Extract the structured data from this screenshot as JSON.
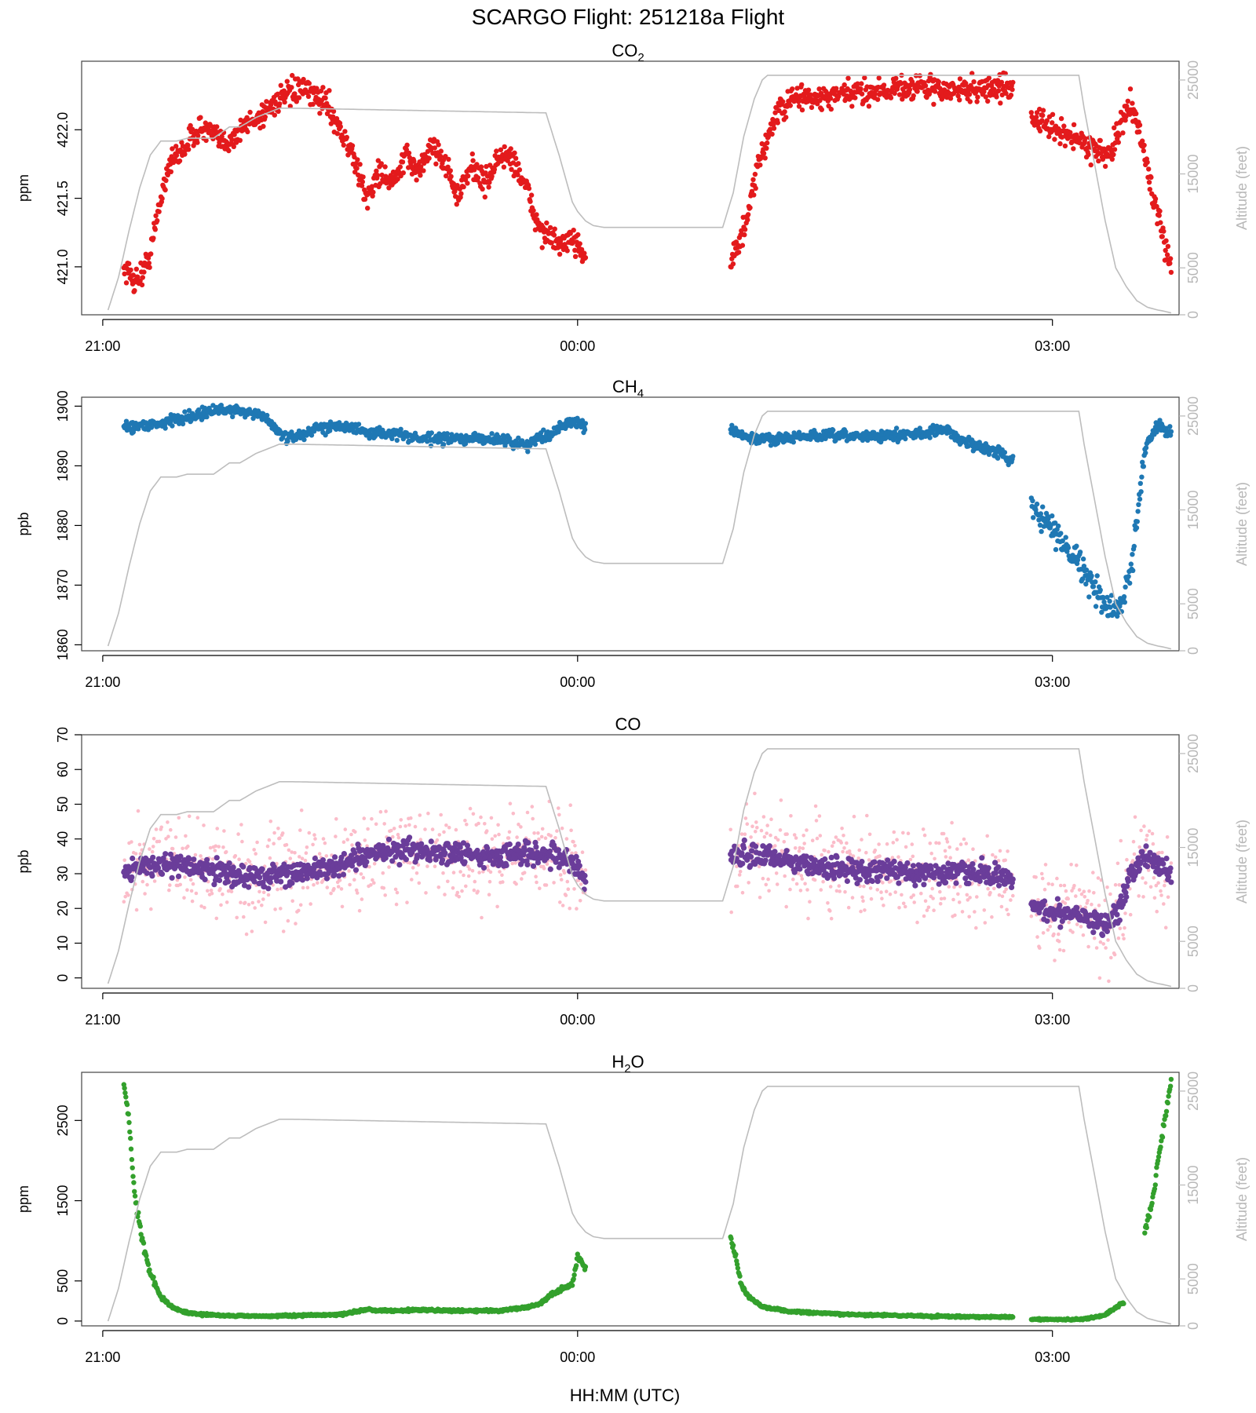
{
  "figure": {
    "title": "SCARGO Flight: 251218a  Flight",
    "xlabel": "HH:MM (UTC)"
  },
  "colors": {
    "co2": "#e31a1c",
    "ch4": "#1f78b4",
    "co_raw": "#fbbcc9",
    "co_avg": "#6a3d9a",
    "h2o": "#33a02c",
    "altitude": "#bdbdbd"
  },
  "chart_data": [
    {
      "type": "scatter",
      "title_main": "CO",
      "title_sub": "2",
      "ylabel": "ppm",
      "y2label": "Altitude (feet)",
      "xlim": [
        "20:52",
        "03:48"
      ],
      "ylim": [
        420.65,
        422.5
      ],
      "yticks": [
        421.0,
        421.5,
        422.0
      ],
      "y2lim": [
        0,
        27000
      ],
      "y2ticks": [
        0,
        5000,
        15000,
        25000
      ],
      "xticks": [
        "21:00",
        "00:00",
        "03:00"
      ],
      "segments": [
        {
          "x": [
            "21:08",
            "21:12",
            "21:15",
            "21:18",
            "21:22",
            "21:25",
            "21:28",
            "21:32",
            "21:36",
            "21:40",
            "21:45",
            "21:50",
            "21:55",
            "22:00",
            "22:05",
            "22:10",
            "22:15",
            "22:20",
            "22:25",
            "22:30",
            "22:35",
            "22:40",
            "22:45",
            "22:50",
            "22:55",
            "23:00",
            "23:05",
            "23:10",
            "23:15",
            "23:20",
            "23:25",
            "23:30",
            "23:35",
            "23:40",
            "23:45",
            "23:50",
            "23:55",
            "00:00",
            "00:03"
          ],
          "y": [
            421.0,
            420.9,
            420.95,
            421.1,
            421.5,
            421.75,
            421.8,
            421.9,
            422.0,
            422.0,
            421.9,
            421.95,
            422.05,
            422.1,
            422.2,
            422.25,
            422.3,
            422.25,
            422.2,
            422.0,
            421.8,
            421.5,
            421.7,
            421.6,
            421.8,
            421.7,
            421.9,
            421.75,
            421.5,
            421.75,
            421.6,
            421.8,
            421.8,
            421.6,
            421.3,
            421.2,
            421.15,
            421.2,
            421.05
          ]
        },
        {
          "x": [
            "00:58",
            "01:02",
            "01:05",
            "01:08",
            "01:12",
            "01:15",
            "01:20",
            "01:25",
            "01:30",
            "01:40",
            "01:50",
            "02:00",
            "02:10",
            "02:20",
            "02:30",
            "02:40",
            "02:45"
          ],
          "y": [
            421.05,
            421.2,
            421.4,
            421.7,
            421.95,
            422.1,
            422.2,
            422.25,
            422.22,
            422.25,
            422.28,
            422.3,
            422.32,
            422.28,
            422.3,
            422.3,
            422.32
          ]
        },
        {
          "x": [
            "02:52",
            "03:00",
            "03:08",
            "03:12",
            "03:18",
            "03:22",
            "03:26",
            "03:30",
            "03:34",
            "03:40",
            "03:45"
          ],
          "y": [
            422.1,
            422.0,
            421.95,
            421.9,
            421.85,
            421.8,
            422.05,
            422.2,
            421.9,
            421.35,
            421.0
          ]
        }
      ]
    },
    {
      "type": "scatter",
      "title_main": "CH",
      "title_sub": "4",
      "ylabel": "ppb",
      "y2label": "Altitude (feet)",
      "xlim": [
        "20:52",
        "03:48"
      ],
      "ylim": [
        1859,
        1901.5
      ],
      "yticks": [
        1860,
        1870,
        1880,
        1890,
        1900
      ],
      "y2lim": [
        0,
        27000
      ],
      "y2ticks": [
        0,
        5000,
        15000,
        25000
      ],
      "xticks": [
        "21:00",
        "00:00",
        "03:00"
      ],
      "segments": [
        {
          "x": [
            "21:08",
            "21:20",
            "21:30",
            "21:40",
            "21:50",
            "22:00",
            "22:10",
            "22:20",
            "22:30",
            "22:40",
            "22:50",
            "23:00",
            "23:10",
            "23:20",
            "23:30",
            "23:40",
            "23:50",
            "23:55",
            "00:00",
            "00:03"
          ],
          "y": [
            1896.5,
            1897,
            1898,
            1899,
            1899.5,
            1898.5,
            1894.5,
            1896,
            1897,
            1895.5,
            1895.5,
            1894.5,
            1894.5,
            1894.5,
            1894.5,
            1893.5,
            1895.5,
            1897,
            1897.5,
            1896
          ]
        },
        {
          "x": [
            "00:58",
            "01:05",
            "01:15",
            "01:30",
            "01:45",
            "02:00",
            "02:10",
            "02:20",
            "02:25",
            "02:30",
            "02:35",
            "02:40",
            "02:45"
          ],
          "y": [
            1896,
            1894.5,
            1894.5,
            1895,
            1895,
            1895,
            1895.5,
            1896,
            1894.5,
            1893.5,
            1893,
            1892,
            1891
          ]
        },
        {
          "x": [
            "02:52",
            "03:00",
            "03:05",
            "03:10",
            "03:15",
            "03:20",
            "03:25",
            "03:30",
            "03:35",
            "03:40",
            "03:45"
          ],
          "y": [
            1884,
            1879,
            1877,
            1874,
            1870,
            1866.5,
            1865.5,
            1873,
            1893,
            1897,
            1895.5
          ]
        }
      ]
    },
    {
      "type": "scatter",
      "title_main": "CO",
      "title_sub": "",
      "ylabel": "ppb",
      "y2label": "Altitude (feet)",
      "xlim": [
        "20:52",
        "03:48"
      ],
      "ylim": [
        -3,
        70
      ],
      "yticks": [
        0,
        10,
        20,
        30,
        40,
        50,
        60,
        70
      ],
      "y2lim": [
        0,
        27000
      ],
      "y2ticks": [
        0,
        5000,
        15000,
        25000
      ],
      "xticks": [
        "21:00",
        "00:00",
        "03:00"
      ],
      "series": [
        {
          "name": "",
          "segments": [
            {
              "x": [
                "21:08",
                "21:20",
                "21:30",
                "21:40",
                "21:50",
                "22:00",
                "22:10",
                "22:20",
                "22:30",
                "22:40",
                "22:50",
                "23:00",
                "23:10",
                "23:20",
                "23:30",
                "23:40",
                "23:50",
                "23:55",
                "00:00",
                "00:03"
              ],
              "y": [
                31,
                33,
                32,
                31,
                30,
                29,
                30,
                31,
                32,
                35,
                37,
                37,
                36,
                35,
                35,
                36,
                36,
                34,
                32,
                28
              ]
            },
            {
              "x": [
                "00:58",
                "01:10",
                "01:20",
                "01:30",
                "01:45",
                "02:00",
                "02:15",
                "02:30",
                "02:40",
                "02:45"
              ],
              "y": [
                35,
                35,
                34,
                32,
                31,
                31,
                30,
                30,
                29,
                28
              ]
            },
            {
              "x": [
                "02:52",
                "03:00",
                "03:10",
                "03:15",
                "03:20",
                "03:25",
                "03:30",
                "03:35",
                "03:40",
                "03:45"
              ],
              "y": [
                21,
                19,
                19,
                17,
                15,
                20,
                30,
                35,
                33,
                30
              ]
            }
          ]
        }
      ]
    },
    {
      "type": "scatter",
      "title_main": "H",
      "title_sub": "2",
      "title_after": "O",
      "ylabel": "ppm",
      "y2label": "Altitude (feet)",
      "xlim": [
        "20:52",
        "03:48"
      ],
      "ylim": [
        -60,
        3100
      ],
      "yticks": [
        0,
        500,
        1500,
        2500
      ],
      "y2lim": [
        0,
        27000
      ],
      "y2ticks": [
        0,
        5000,
        15000,
        25000
      ],
      "xticks": [
        "21:00",
        "00:00",
        "03:00"
      ],
      "segments": [
        {
          "x": [
            "21:08",
            "21:10",
            "21:12",
            "21:15",
            "21:18",
            "21:22",
            "21:26",
            "21:30",
            "21:35",
            "21:45",
            "22:00",
            "22:15",
            "22:30",
            "22:40",
            "22:50",
            "23:00",
            "23:10",
            "23:20",
            "23:30",
            "23:40",
            "23:45",
            "23:50",
            "23:55",
            "23:58",
            "00:00",
            "00:03"
          ],
          "y": [
            2950,
            2500,
            1600,
            1000,
            600,
            300,
            180,
            120,
            90,
            70,
            60,
            70,
            80,
            140,
            130,
            140,
            130,
            130,
            130,
            170,
            200,
            330,
            420,
            450,
            800,
            650
          ]
        },
        {
          "x": [
            "00:58",
            "01:00",
            "01:02",
            "01:05",
            "01:10",
            "01:20",
            "01:30",
            "01:45",
            "02:00",
            "02:15",
            "02:30",
            "02:45"
          ],
          "y": [
            1050,
            800,
            450,
            300,
            180,
            120,
            100,
            80,
            70,
            60,
            55,
            50
          ]
        },
        {
          "x": [
            "02:52",
            "03:00",
            "03:10",
            "03:15",
            "03:20",
            "03:24",
            "03:27"
          ],
          "y": [
            20,
            20,
            20,
            40,
            80,
            170,
            230
          ]
        },
        {
          "x": [
            "03:35",
            "03:38",
            "03:40",
            "03:42",
            "03:44",
            "03:45"
          ],
          "y": [
            1100,
            1500,
            2000,
            2400,
            2800,
            3000
          ]
        }
      ]
    }
  ],
  "altitude_profile": {
    "x": [
      "21:02",
      "21:06",
      "21:10",
      "21:14",
      "21:18",
      "21:22",
      "21:28",
      "21:32",
      "21:42",
      "21:48",
      "21:52",
      "21:58",
      "22:07",
      "22:12",
      "23:48",
      "23:53",
      "23:58",
      "00:00",
      "00:03",
      "00:06",
      "00:10",
      "00:15",
      "00:55",
      "00:59",
      "01:03",
      "01:07",
      "01:10",
      "01:12",
      "01:15",
      "01:20",
      "03:10",
      "03:12",
      "03:16",
      "03:20",
      "03:24",
      "03:28",
      "03:32",
      "03:36",
      "03:40",
      "03:42",
      "03:45"
    ],
    "y": [
      500,
      4000,
      9000,
      13500,
      17000,
      18500,
      18500,
      18800,
      18800,
      20000,
      20000,
      21000,
      22000,
      22000,
      21500,
      17000,
      12000,
      11000,
      10000,
      9500,
      9300,
      9300,
      9300,
      13000,
      19000,
      23000,
      25000,
      25500,
      25500,
      25500,
      25500,
      22000,
      16000,
      10000,
      5000,
      3000,
      1500,
      800,
      500,
      400,
      200
    ]
  }
}
